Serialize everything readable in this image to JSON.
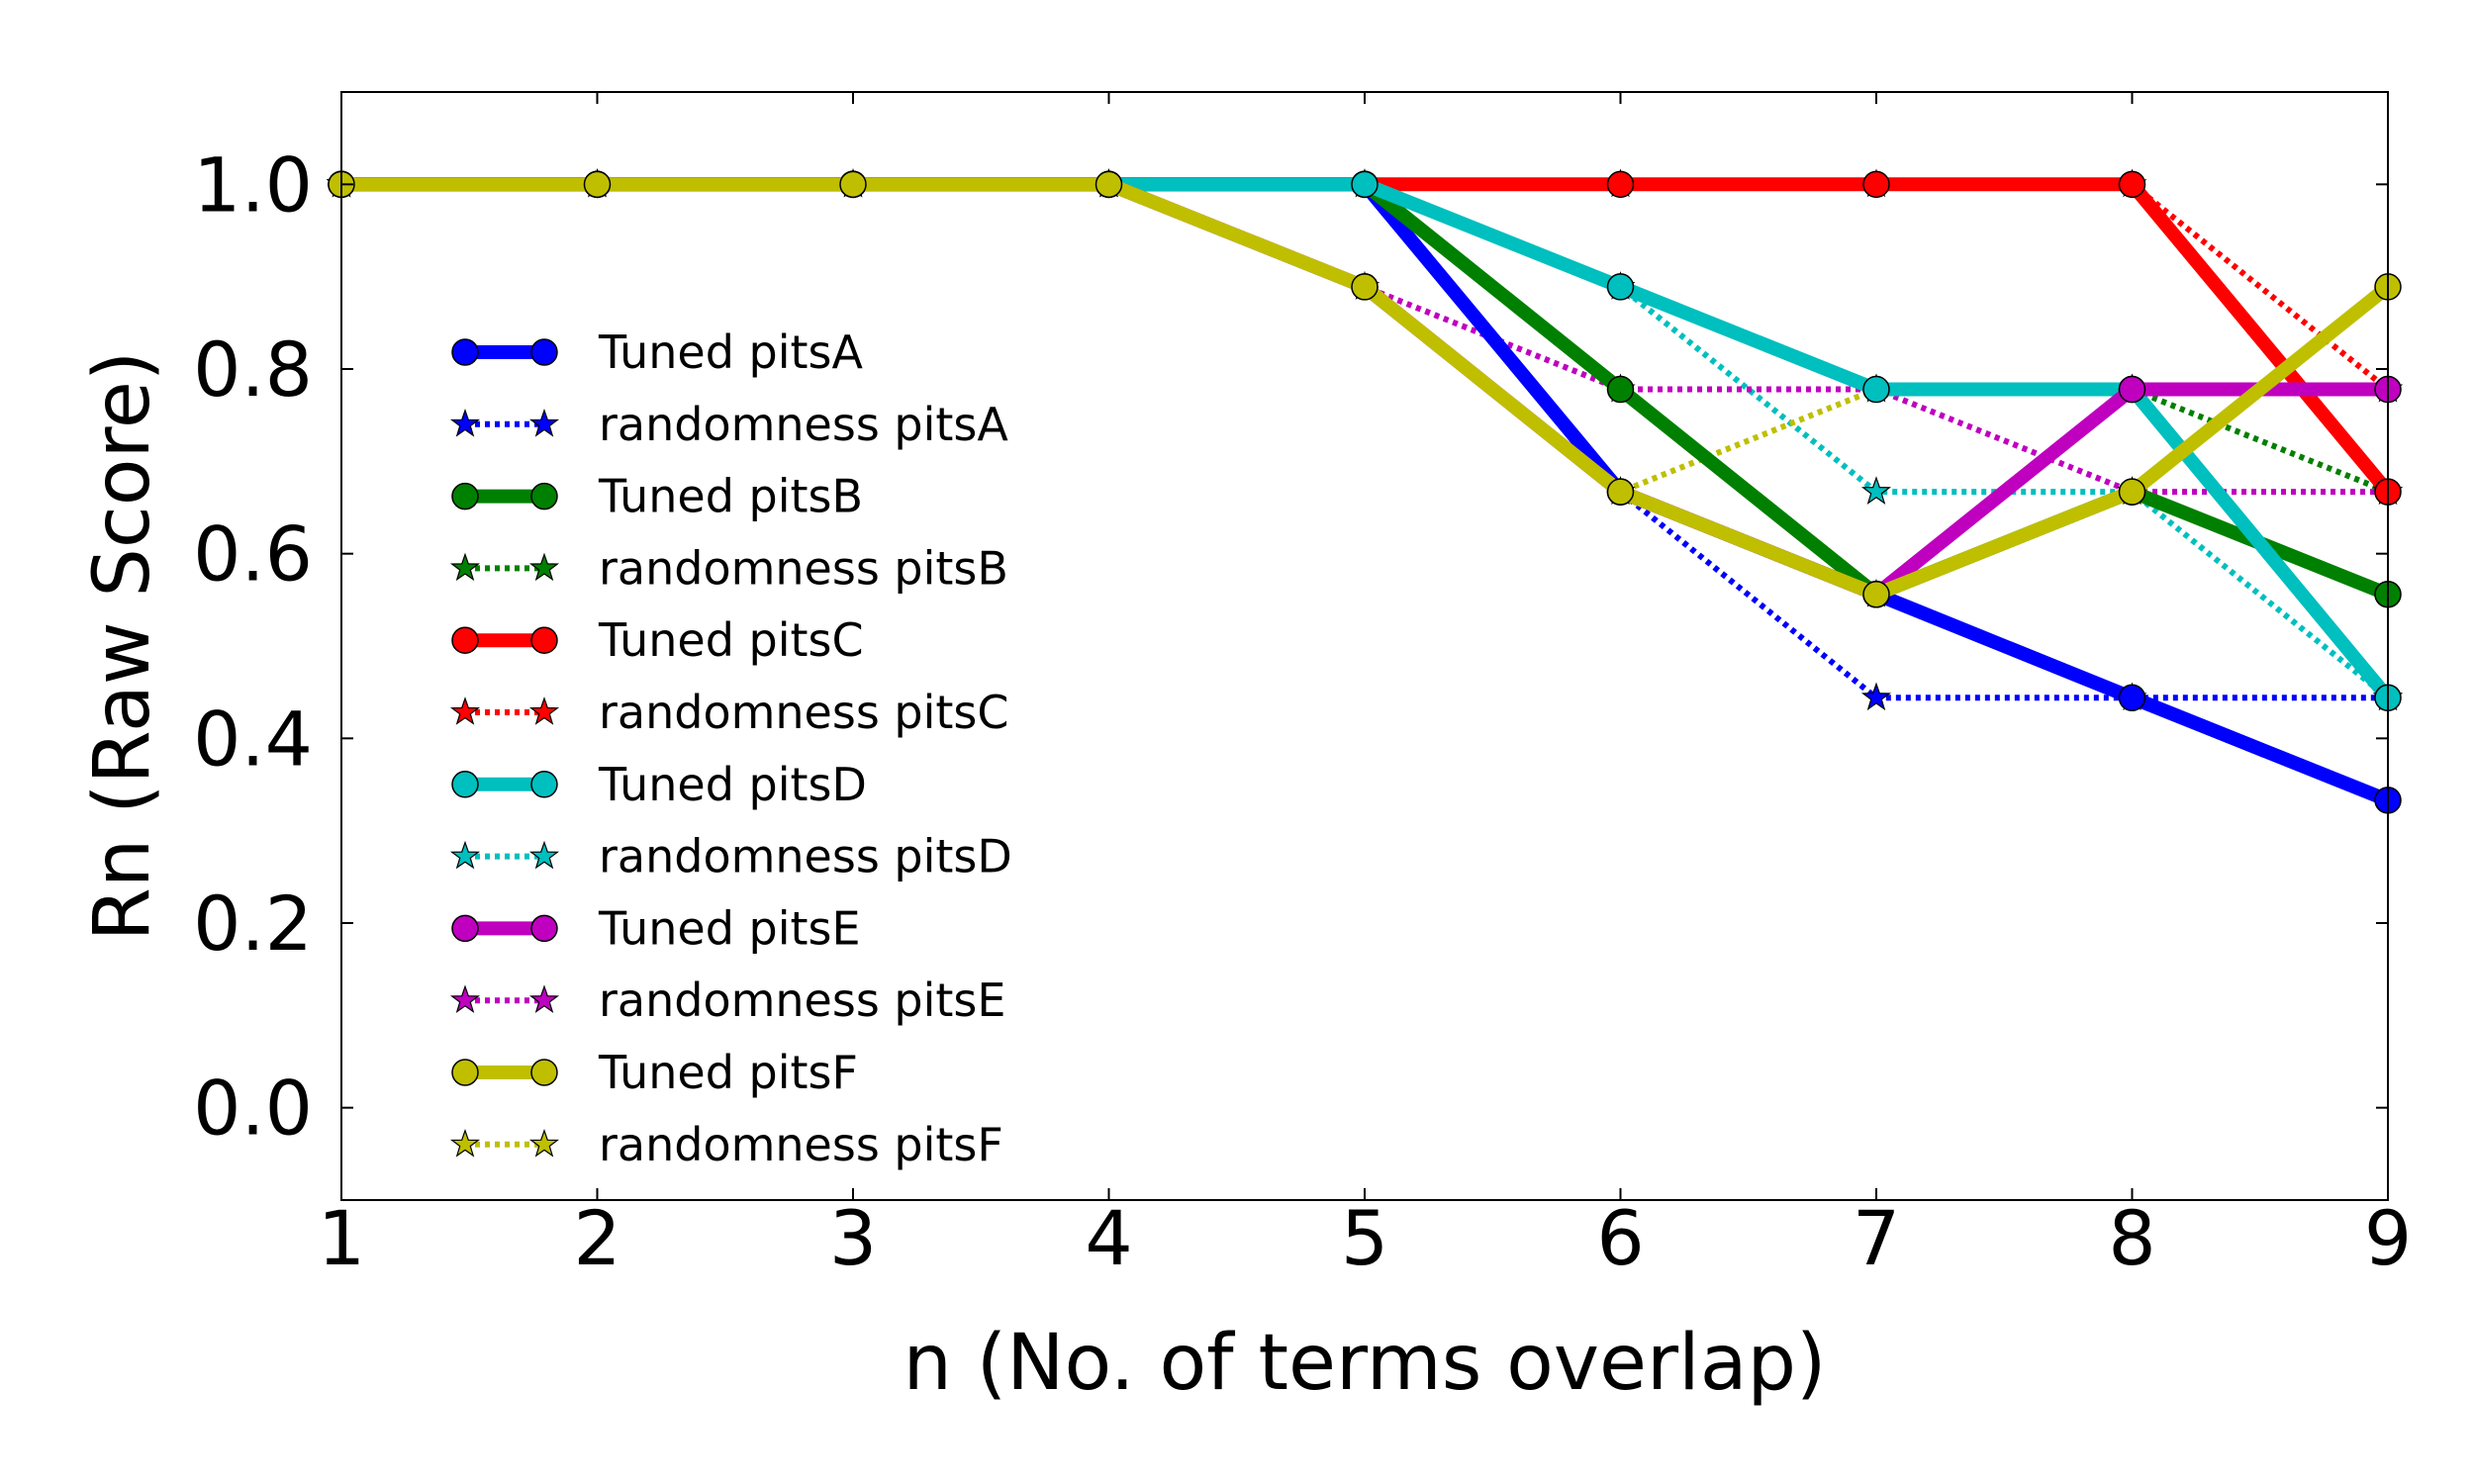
{
  "chart_data": {
    "type": "line",
    "xlabel": "n (No. of terms overlap)",
    "ylabel": "Rn (Raw Score)",
    "xlim": [
      1,
      9
    ],
    "ylim": [
      -0.1,
      1.1
    ],
    "x": [
      1,
      2,
      3,
      4,
      5,
      6,
      7,
      8,
      9
    ],
    "xticks": [
      "1",
      "2",
      "3",
      "4",
      "5",
      "6",
      "7",
      "8",
      "9"
    ],
    "yticks": [
      "0.0",
      "0.2",
      "0.4",
      "0.6",
      "0.8",
      "1.0"
    ],
    "grid": false,
    "legend_position": "center-left",
    "series": [
      {
        "name": "Tuned pitsA",
        "style": "solid",
        "marker": "circle",
        "color": "#0000ff",
        "values": [
          1.0,
          1.0,
          1.0,
          1.0,
          1.0,
          0.667,
          0.556,
          0.444,
          0.333
        ]
      },
      {
        "name": "randomness pitsA",
        "style": "dotted",
        "marker": "star",
        "color": "#0000ff",
        "values": [
          1.0,
          1.0,
          1.0,
          1.0,
          1.0,
          0.667,
          0.444,
          0.444,
          0.444
        ]
      },
      {
        "name": "Tuned pitsB",
        "style": "solid",
        "marker": "circle",
        "color": "#008000",
        "values": [
          1.0,
          1.0,
          1.0,
          1.0,
          1.0,
          0.778,
          0.556,
          0.667,
          0.556
        ]
      },
      {
        "name": "randomness pitsB",
        "style": "dotted",
        "marker": "star",
        "color": "#008000",
        "values": [
          1.0,
          1.0,
          1.0,
          1.0,
          1.0,
          0.778,
          0.556,
          0.778,
          0.667
        ]
      },
      {
        "name": "Tuned pitsC",
        "style": "solid",
        "marker": "circle",
        "color": "#ff0000",
        "values": [
          1.0,
          1.0,
          1.0,
          1.0,
          1.0,
          1.0,
          1.0,
          1.0,
          0.667
        ]
      },
      {
        "name": "randomness pitsC",
        "style": "dotted",
        "marker": "star",
        "color": "#ff0000",
        "values": [
          1.0,
          1.0,
          1.0,
          1.0,
          1.0,
          1.0,
          1.0,
          1.0,
          0.778
        ]
      },
      {
        "name": "Tuned pitsD",
        "style": "solid",
        "marker": "circle",
        "color": "#00bfbf",
        "values": [
          1.0,
          1.0,
          1.0,
          1.0,
          1.0,
          0.889,
          0.778,
          0.778,
          0.444
        ]
      },
      {
        "name": "randomness pitsD",
        "style": "dotted",
        "marker": "star",
        "color": "#00bfbf",
        "values": [
          1.0,
          1.0,
          1.0,
          1.0,
          1.0,
          0.889,
          0.667,
          0.667,
          0.444
        ]
      },
      {
        "name": "Tuned pitsE",
        "style": "solid",
        "marker": "circle",
        "color": "#bf00bf",
        "values": [
          1.0,
          1.0,
          1.0,
          1.0,
          0.889,
          0.667,
          0.556,
          0.778,
          0.778
        ]
      },
      {
        "name": "randomness pitsE",
        "style": "dotted",
        "marker": "star",
        "color": "#bf00bf",
        "values": [
          1.0,
          1.0,
          1.0,
          1.0,
          0.889,
          0.778,
          0.778,
          0.667,
          0.667
        ]
      },
      {
        "name": "Tuned pitsF",
        "style": "solid",
        "marker": "circle",
        "color": "#bfbf00",
        "values": [
          1.0,
          1.0,
          1.0,
          1.0,
          0.889,
          0.667,
          0.556,
          0.667,
          0.889
        ]
      },
      {
        "name": "randomness pitsF",
        "style": "dotted",
        "marker": "star",
        "color": "#bfbf00",
        "values": [
          1.0,
          1.0,
          1.0,
          1.0,
          0.889,
          0.667,
          0.778,
          0.778,
          0.778
        ]
      }
    ]
  }
}
